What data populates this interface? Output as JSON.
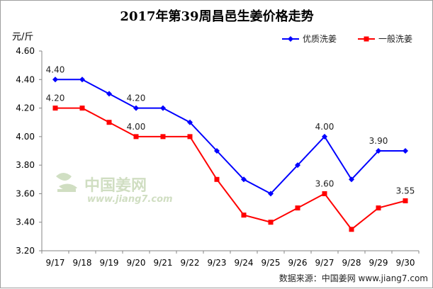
{
  "chart_data": {
    "type": "line",
    "title": "2017年第39周昌邑生姜价格走势",
    "ylabel": "元/斤",
    "xlabel": "",
    "categories": [
      "9/17",
      "9/18",
      "9/19",
      "9/20",
      "9/21",
      "9/22",
      "9/23",
      "9/24",
      "9/25",
      "9/26",
      "9/27",
      "9/28",
      "9/29",
      "9/30"
    ],
    "ylim": [
      3.2,
      4.6
    ],
    "yticks": [
      "3.20",
      "3.40",
      "3.60",
      "3.80",
      "4.00",
      "4.20",
      "4.40",
      "4.60"
    ],
    "grid": false,
    "legend_position": "top-right",
    "series": [
      {
        "name": "优质洗姜",
        "color": "#0000ff",
        "marker": "diamond",
        "values": [
          4.4,
          4.4,
          4.3,
          4.2,
          4.2,
          4.1,
          3.9,
          3.7,
          3.6,
          3.8,
          4.0,
          3.7,
          3.9,
          3.9
        ],
        "labels": [
          {
            "index": 0,
            "text": "4.40"
          },
          {
            "index": 3,
            "text": "4.20"
          },
          {
            "index": 10,
            "text": "4.00"
          },
          {
            "index": 12,
            "text": "3.90"
          }
        ]
      },
      {
        "name": "一般洗姜",
        "color": "#ff0000",
        "marker": "square",
        "values": [
          4.2,
          4.2,
          4.1,
          4.0,
          4.0,
          4.0,
          3.7,
          3.45,
          3.4,
          3.5,
          3.6,
          3.35,
          3.5,
          3.55
        ],
        "labels": [
          {
            "index": 0,
            "text": "4.20"
          },
          {
            "index": 3,
            "text": "4.00"
          },
          {
            "index": 10,
            "text": "3.60"
          },
          {
            "index": 13,
            "text": "3.55"
          }
        ]
      }
    ]
  },
  "watermark": {
    "text_cn": "中国姜网",
    "text_en": "www.jiang7.com"
  },
  "source": "数据来源：中国姜网 www.jiang7.com"
}
